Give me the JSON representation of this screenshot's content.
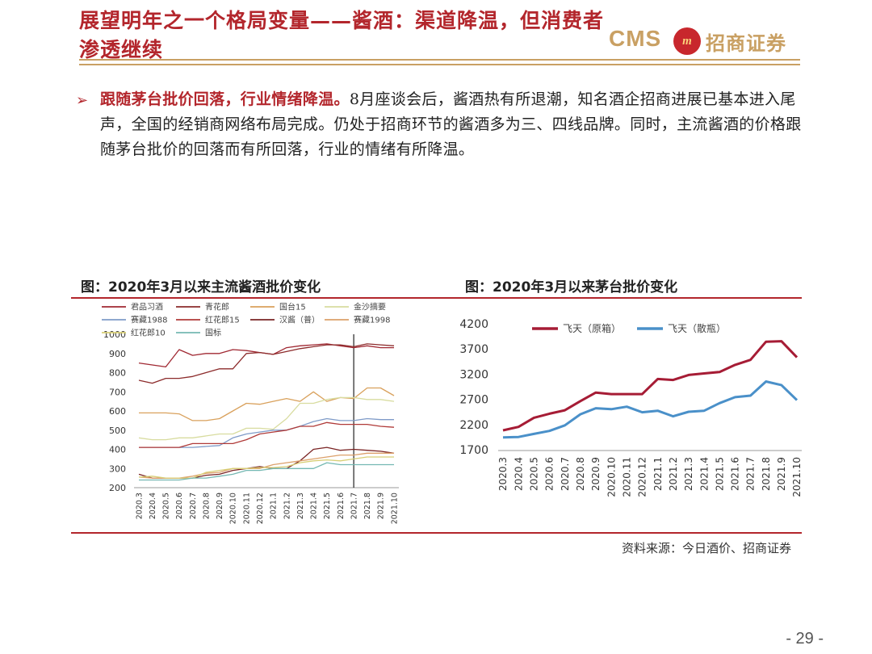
{
  "header": {
    "title": "展望明年之一个格局变量——酱酒：渠道降温，但消费者渗透继续",
    "logo_cms": "CMS",
    "logo_badge": "m",
    "logo_cn": "招商证券"
  },
  "body": {
    "highlight": "跟随茅台批价回落，行业情绪降温。",
    "text": "8月座谈会后，酱酒热有所退潮，知名酒企招商进展已基本进入尾声，全国的经销商网络布局完成。仍处于招商环节的酱酒多为三、四线品牌。同时，主流酱酒的价格跟随茅台批价的回落而有所回落，行业的情绪有所降温。"
  },
  "footer": {
    "source": "资料来源：今日酒价、招商证券",
    "page": "- 29 -"
  },
  "colors": {
    "brand_red": "#b3262c",
    "gold": "#c9a063"
  },
  "chart_data": [
    {
      "type": "line",
      "title": "图：2020年3月以来主流酱酒批价变化",
      "categories": [
        "2020.3",
        "2020.4",
        "2020.5",
        "2020.6",
        "2020.7",
        "2020.8",
        "2020.9",
        "2020.10",
        "2020.11",
        "2020.12",
        "2021.1",
        "2021.2",
        "2021.3",
        "2021.4",
        "2021.5",
        "2021.6",
        "2021.7",
        "2021.8",
        "2021.9",
        "2021.10"
      ],
      "ylim": [
        200,
        1000
      ],
      "yticks": [
        200,
        300,
        400,
        500,
        600,
        700,
        800,
        900,
        1000
      ],
      "marker_category": "2021.7",
      "legend_position": "top",
      "series": [
        {
          "name": "君品习酒",
          "color": "#a02832",
          "values": [
            850,
            840,
            830,
            920,
            890,
            900,
            900,
            920,
            915,
            905,
            895,
            930,
            940,
            945,
            950,
            940,
            930,
            940,
            930,
            930
          ]
        },
        {
          "name": "青花郎",
          "color": "#8c2b2b",
          "values": [
            760,
            745,
            770,
            770,
            780,
            800,
            820,
            820,
            900,
            905,
            895,
            910,
            925,
            935,
            945,
            945,
            935,
            950,
            945,
            940
          ]
        },
        {
          "name": "国台15",
          "color": "#d9a15c",
          "values": [
            590,
            590,
            590,
            585,
            550,
            550,
            560,
            600,
            640,
            635,
            650,
            665,
            650,
            700,
            650,
            670,
            665,
            720,
            720,
            680
          ]
        },
        {
          "name": "金沙摘要",
          "color": "#d8dc9f",
          "values": [
            460,
            450,
            450,
            460,
            460,
            470,
            480,
            480,
            510,
            510,
            505,
            560,
            640,
            640,
            660,
            670,
            670,
            660,
            660,
            650
          ]
        },
        {
          "name": "赛藏1988",
          "color": "#7f9bc8",
          "values": [
            410,
            410,
            410,
            410,
            410,
            415,
            420,
            460,
            480,
            490,
            500,
            500,
            520,
            545,
            560,
            550,
            550,
            560,
            555,
            555
          ]
        },
        {
          "name": "红花郎15",
          "color": "#b03a38",
          "values": [
            410,
            410,
            410,
            410,
            430,
            430,
            430,
            430,
            450,
            480,
            490,
            500,
            520,
            520,
            540,
            530,
            530,
            530,
            520,
            515
          ]
        },
        {
          "name": "汉酱（普）",
          "color": "#7a2424",
          "values": [
            270,
            250,
            250,
            250,
            250,
            265,
            270,
            290,
            300,
            310,
            300,
            300,
            340,
            400,
            410,
            395,
            400,
            395,
            390,
            380
          ]
        },
        {
          "name": "赛藏1998",
          "color": "#dca06a",
          "values": [
            255,
            250,
            250,
            250,
            260,
            275,
            280,
            300,
            300,
            300,
            320,
            330,
            340,
            350,
            360,
            370,
            370,
            380,
            380,
            380
          ]
        },
        {
          "name": "红花郎10",
          "color": "#d8cf76",
          "values": [
            255,
            260,
            250,
            250,
            250,
            280,
            290,
            300,
            300,
            305,
            305,
            310,
            330,
            340,
            345,
            340,
            350,
            360,
            360,
            360
          ]
        },
        {
          "name": "国标",
          "color": "#74b8b2",
          "values": [
            240,
            240,
            240,
            240,
            250,
            250,
            260,
            270,
            290,
            290,
            300,
            300,
            300,
            300,
            330,
            320,
            320,
            320,
            320,
            320
          ]
        }
      ]
    },
    {
      "type": "line",
      "title": "图：2020年3月以来茅台批价变化",
      "categories": [
        "2020.3",
        "2020.4",
        "2020.5",
        "2020.6",
        "2020.7",
        "2020.8",
        "2020.9",
        "2020.10",
        "2020.11",
        "2020.12",
        "2021.1",
        "2021.2",
        "2021.3",
        "2021.4",
        "2021.5",
        "2021.6",
        "2021.7",
        "2021.8",
        "2021.9",
        "2021.10"
      ],
      "ylim": [
        1700,
        4200
      ],
      "yticks": [
        1700,
        2200,
        2700,
        3200,
        3700,
        4200
      ],
      "legend_position": "top",
      "series": [
        {
          "name": "飞天（原箱）",
          "color": "#a61c35",
          "values": [
            2100,
            2170,
            2350,
            2430,
            2500,
            2680,
            2850,
            2820,
            2820,
            2820,
            3120,
            3100,
            3200,
            3230,
            3260,
            3400,
            3500,
            3860,
            3870,
            3550
          ]
        },
        {
          "name": "飞天（散瓶）",
          "color": "#4a90c9",
          "values": [
            1960,
            1970,
            2030,
            2090,
            2200,
            2420,
            2540,
            2520,
            2570,
            2460,
            2490,
            2380,
            2470,
            2490,
            2640,
            2760,
            2790,
            3070,
            3000,
            2700
          ]
        }
      ]
    }
  ]
}
